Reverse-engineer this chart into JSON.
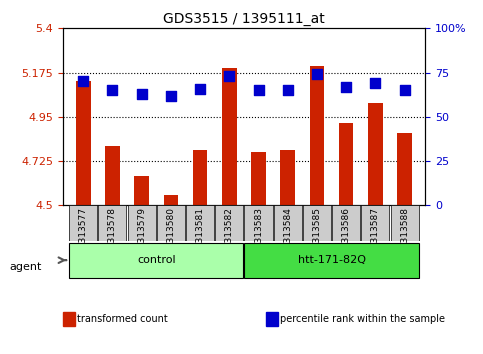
{
  "title": "GDS3515 / 1395111_at",
  "samples": [
    "GSM313577",
    "GSM313578",
    "GSM313579",
    "GSM313580",
    "GSM313581",
    "GSM313582",
    "GSM313583",
    "GSM313584",
    "GSM313585",
    "GSM313586",
    "GSM313587",
    "GSM313588"
  ],
  "bar_values": [
    5.13,
    4.8,
    4.65,
    4.55,
    4.78,
    5.2,
    4.77,
    4.78,
    5.21,
    4.92,
    5.02,
    4.87
  ],
  "dot_values": [
    70,
    65,
    63,
    62,
    66,
    73,
    65,
    65,
    74,
    67,
    69,
    65
  ],
  "ylim": [
    4.5,
    5.4
  ],
  "y2lim": [
    0,
    100
  ],
  "yticks": [
    4.5,
    4.725,
    4.95,
    5.175,
    5.4
  ],
  "y2ticks": [
    0,
    25,
    50,
    75,
    100
  ],
  "ytick_labels": [
    "4.5",
    "4.725",
    "4.95",
    "5.175",
    "5.4"
  ],
  "y2tick_labels": [
    "0",
    "25",
    "50",
    "75",
    "100%"
  ],
  "bar_color": "#CC2200",
  "dot_color": "#0000CC",
  "grid_lines": [
    4.725,
    4.95,
    5.175
  ],
  "groups": [
    {
      "label": "control",
      "start": 0,
      "end": 5,
      "color": "#AAFFAA"
    },
    {
      "label": "htt-171-82Q",
      "start": 6,
      "end": 11,
      "color": "#44DD44"
    }
  ],
  "agent_label": "agent",
  "legend_items": [
    {
      "color": "#CC2200",
      "label": "transformed count"
    },
    {
      "color": "#0000CC",
      "label": "percentile rank within the sample"
    }
  ],
  "bar_width": 0.5,
  "dot_size": 50,
  "background_plot": "#FFFFFF",
  "background_xlabels": "#CCCCCC",
  "spine_color": "#000000"
}
